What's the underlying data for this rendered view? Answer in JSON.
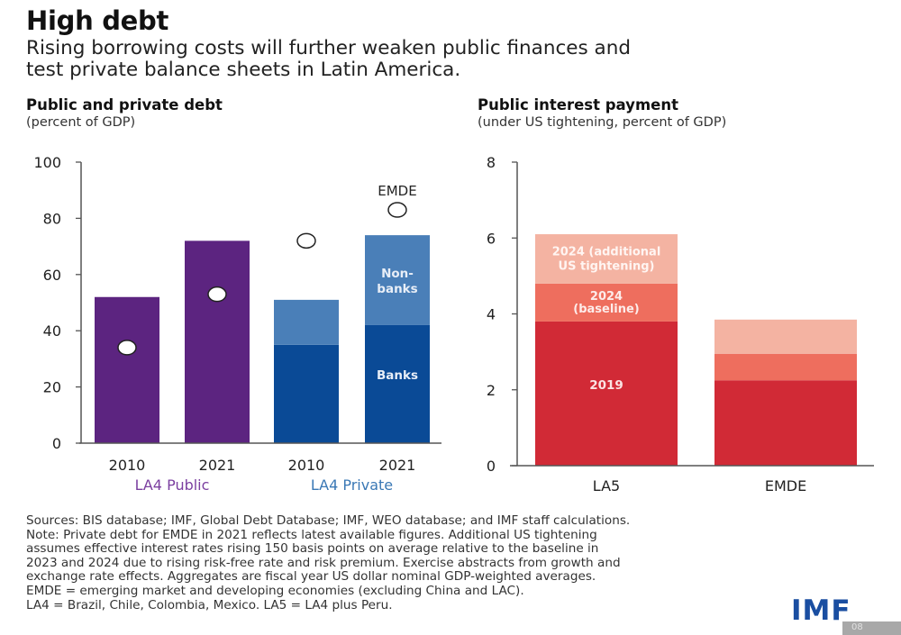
{
  "header": {
    "title": "High debt",
    "subtitle_lines": [
      "Rising borrowing costs will further weaken public finances and",
      "test private balance sheets in Latin America."
    ]
  },
  "chart_data": [
    {
      "type": "bar",
      "title": "Public and private debt",
      "subtitle": "(percent of GDP)",
      "xlabel": "",
      "ylabel": "",
      "ylim": [
        0,
        100
      ],
      "yticks": [
        0,
        20,
        40,
        60,
        80,
        100
      ],
      "grid": false,
      "categories": [
        "2010",
        "2021",
        "2010",
        "2021"
      ],
      "groups": [
        {
          "label": "LA4 Public",
          "color": "#7b3fa0",
          "categories": [
            0,
            1
          ]
        },
        {
          "label": "LA4 Private",
          "color": "#3a78b5",
          "categories": [
            2,
            3
          ]
        }
      ],
      "series": [
        {
          "name": "LA4 Public",
          "values": [
            52,
            72,
            null,
            null
          ],
          "color": "#5c2480"
        },
        {
          "name": "Banks",
          "values": [
            null,
            null,
            35,
            42
          ],
          "color": "#0a4a96",
          "label": "Banks"
        },
        {
          "name": "Non-banks",
          "values": [
            null,
            null,
            16,
            32
          ],
          "color": "#4a7fb8",
          "label_lines": [
            "Non-",
            "banks"
          ]
        },
        {
          "name": "EMDE",
          "type": "marker",
          "values": [
            34,
            53,
            72,
            83
          ],
          "label": "EMDE"
        }
      ]
    },
    {
      "type": "bar",
      "title": "Public interest payment",
      "subtitle": "(under US tightening, percent of GDP)",
      "xlabel": "",
      "ylabel": "",
      "ylim": [
        0,
        8
      ],
      "yticks": [
        0,
        2,
        4,
        6,
        8
      ],
      "grid": false,
      "categories": [
        "LA5",
        "EMDE"
      ],
      "series": [
        {
          "name": "2019",
          "values": [
            3.8,
            2.25
          ],
          "color": "#d12a36",
          "label_lines": [
            "2019"
          ]
        },
        {
          "name": "2024 (baseline)",
          "values": [
            1.0,
            0.7
          ],
          "color": "#ee6e5e",
          "label_lines": [
            "2024",
            "(baseline)"
          ]
        },
        {
          "name": "2024 (additional US tightening)",
          "values": [
            1.3,
            0.9
          ],
          "color": "#f4b3a2",
          "label_lines": [
            "2024 (additional",
            "US tightening)"
          ]
        }
      ]
    }
  ],
  "notes": [
    "Sources: BIS database; IMF, Global Debt Database; IMF, WEO database; and IMF staff calculations.",
    "Note: Private debt for EMDE in 2021 reflects latest available figures. Additional US tightening",
    "assumes effective interest rates rising 150 basis points on average relative to the baseline in",
    "2023 and 2024 due to rising risk-free rate and risk premium. Exercise abstracts from growth and",
    "exchange rate effects. Aggregates are fiscal year US dollar nominal GDP-weighted averages.",
    "EMDE = emerging market and developing economies (excluding China and LAC).",
    "LA4 = Brazil, Chile, Colombia, Mexico. LA5 = LA4 plus Peru."
  ],
  "logo": "IMF",
  "watermark_text": "08"
}
